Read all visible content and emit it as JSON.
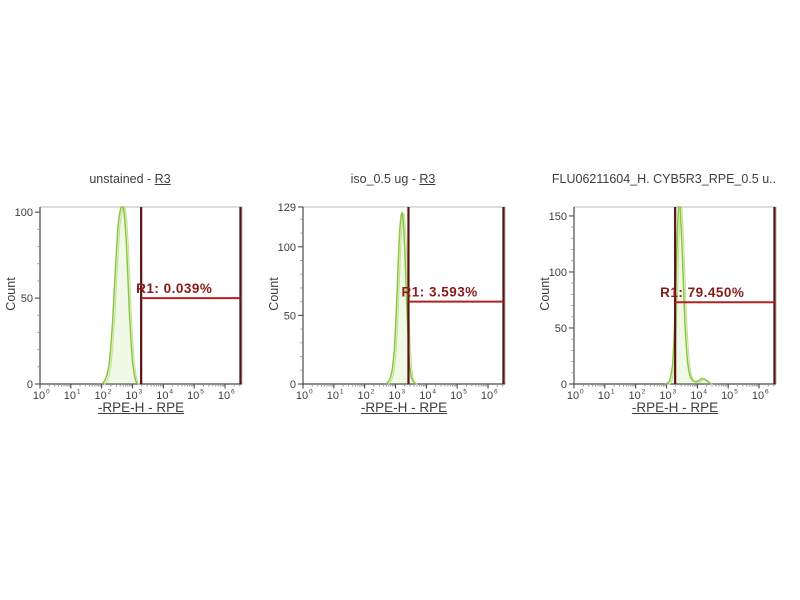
{
  "colors": {
    "background": "#ffffff",
    "text": "#3d3d3d",
    "axis": "#4a4a4a",
    "frame_light": "#b8b8b8",
    "tick_minor": "#909090",
    "curve": "#8cc63e",
    "curve_light": "#c6e29b",
    "gate_vertical": "#5a1313",
    "gate_horizontal": "#b22020",
    "gate_text": "#8a1a1a"
  },
  "shared": {
    "x_tick_base": "10",
    "x_tick_exponents": [
      0,
      1,
      2,
      3,
      4,
      5,
      6
    ]
  },
  "chart_data": [
    {
      "type": "area",
      "title": "unstained - R3",
      "title_main": "unstained - ",
      "title_link": "R3",
      "xlabel": "-RPE-H - RPE",
      "ylabel": "Count",
      "x_scale": "log10",
      "xlim": [
        0,
        6.55
      ],
      "ylim": [
        0,
        103
      ],
      "y_major_ticks": [
        0,
        50,
        100
      ],
      "y_minor_step": 10,
      "gate": {
        "name": "R1",
        "label": "R1: 0.039%",
        "percent": 0.039,
        "x1_decade": 3.28,
        "x2_decade": 6.5,
        "level": 50,
        "label_dx": -5
      },
      "curve_points": [
        [
          2.02,
          0
        ],
        [
          2.1,
          2
        ],
        [
          2.17,
          5
        ],
        [
          2.24,
          11
        ],
        [
          2.3,
          22
        ],
        [
          2.36,
          38
        ],
        [
          2.42,
          58
        ],
        [
          2.48,
          78
        ],
        [
          2.53,
          92
        ],
        [
          2.58,
          99
        ],
        [
          2.63,
          103
        ],
        [
          2.7,
          103
        ],
        [
          2.75,
          96
        ],
        [
          2.8,
          82
        ],
        [
          2.85,
          62
        ],
        [
          2.9,
          42
        ],
        [
          2.95,
          25
        ],
        [
          3.0,
          13
        ],
        [
          3.05,
          6
        ],
        [
          3.1,
          2
        ],
        [
          3.16,
          0
        ]
      ]
    },
    {
      "type": "area",
      "title": "iso_0.5 ug - R3",
      "title_main": "iso_0.5 ug - ",
      "title_link": "R3",
      "xlabel": "-RPE-H - RPE",
      "ylabel": "Count",
      "x_scale": "log10",
      "xlim": [
        0,
        6.55
      ],
      "ylim": [
        0,
        129
      ],
      "y_major_ticks": [
        0,
        50,
        100,
        129
      ],
      "y_minor_step": 10,
      "gate": {
        "name": "R1",
        "label": "R1: 3.593%",
        "percent": 3.593,
        "x1_decade": 3.42,
        "x2_decade": 6.5,
        "level": 60,
        "label_dx": -7
      },
      "curve_points": [
        [
          2.7,
          0
        ],
        [
          2.78,
          2
        ],
        [
          2.84,
          5
        ],
        [
          2.9,
          11
        ],
        [
          2.96,
          24
        ],
        [
          3.01,
          45
        ],
        [
          3.06,
          72
        ],
        [
          3.1,
          95
        ],
        [
          3.14,
          113
        ],
        [
          3.18,
          123
        ],
        [
          3.22,
          125
        ],
        [
          3.26,
          116
        ],
        [
          3.3,
          98
        ],
        [
          3.34,
          74
        ],
        [
          3.38,
          50
        ],
        [
          3.42,
          28
        ],
        [
          3.46,
          13
        ],
        [
          3.51,
          5
        ],
        [
          3.57,
          2
        ],
        [
          3.65,
          0
        ]
      ]
    },
    {
      "type": "area",
      "title": "FLU06211604_H. CYB5R3_RPE_0.5 u..",
      "title_main": "FLU06211604_H. CYB5R3_RPE_0.5 u..",
      "title_link": "",
      "xlabel": "-RPE-H - RPE",
      "ylabel": "Count",
      "x_scale": "log10",
      "xlim": [
        0,
        6.55
      ],
      "ylim": [
        0,
        158
      ],
      "y_major_ticks": [
        0,
        50,
        100,
        150
      ],
      "y_minor_step": 10,
      "gate": {
        "name": "R1",
        "label": "R1: 79.450%",
        "percent": 79.45,
        "x1_decade": 3.28,
        "x2_decade": 6.5,
        "level": 73,
        "label_dx": -15
      },
      "curve_points": [
        [
          2.95,
          0
        ],
        [
          3.05,
          1
        ],
        [
          3.1,
          3
        ],
        [
          3.15,
          8
        ],
        [
          3.2,
          18
        ],
        [
          3.24,
          38
        ],
        [
          3.28,
          70
        ],
        [
          3.32,
          105
        ],
        [
          3.36,
          140
        ],
        [
          3.39,
          158
        ],
        [
          3.44,
          158
        ],
        [
          3.48,
          138
        ],
        [
          3.52,
          110
        ],
        [
          3.56,
          80
        ],
        [
          3.6,
          54
        ],
        [
          3.64,
          34
        ],
        [
          3.68,
          20
        ],
        [
          3.73,
          11
        ],
        [
          3.78,
          6
        ],
        [
          3.85,
          3
        ],
        [
          3.95,
          2
        ],
        [
          4.05,
          3
        ],
        [
          4.15,
          5
        ],
        [
          4.25,
          4
        ],
        [
          4.35,
          2
        ],
        [
          4.45,
          0
        ]
      ]
    }
  ]
}
